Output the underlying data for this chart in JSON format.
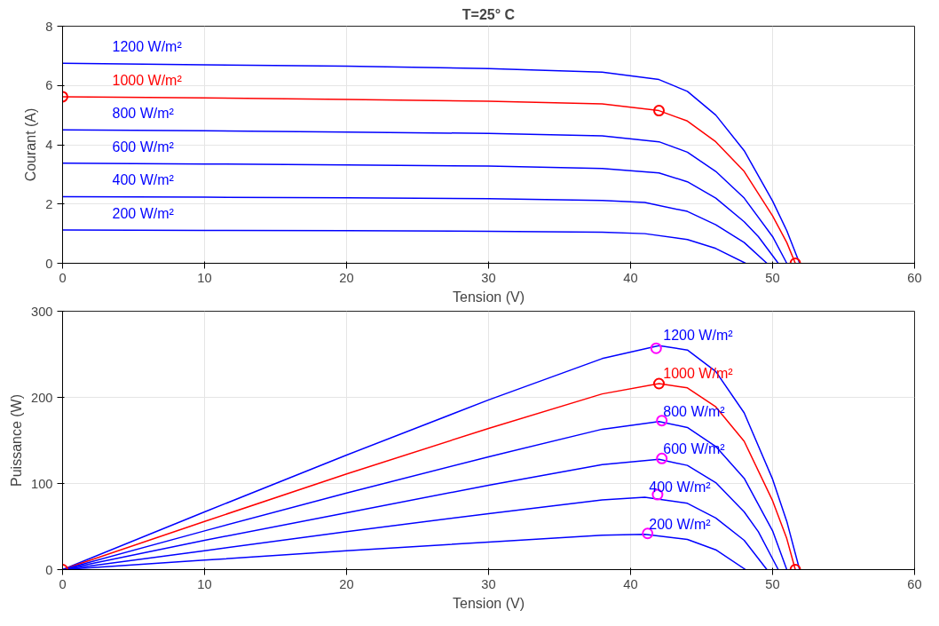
{
  "chart_data": [
    {
      "type": "line",
      "title": "T=25° C",
      "xlabel": "Tension (V)",
      "ylabel": "Courant (A)",
      "xlim": [
        0,
        60
      ],
      "xticks": [
        0,
        10,
        20,
        30,
        40,
        50,
        60
      ],
      "ylim": [
        0,
        8
      ],
      "yticks": [
        0,
        2,
        4,
        6,
        8
      ],
      "grid": true,
      "series": [
        {
          "name": "1200 W/m²",
          "color": "#0000ff",
          "x": [
            0,
            10,
            20,
            30,
            38,
            42,
            44,
            46,
            48,
            50,
            51,
            51.9
          ],
          "values": [
            6.75,
            6.7,
            6.65,
            6.57,
            6.45,
            6.2,
            5.8,
            5.0,
            3.8,
            2.1,
            1.1,
            0
          ]
        },
        {
          "name": "1000 W/m²",
          "color": "#ff0000",
          "x": [
            0,
            10,
            20,
            30,
            38,
            42,
            44,
            46,
            48,
            50,
            51,
            51.6
          ],
          "values": [
            5.62,
            5.58,
            5.53,
            5.47,
            5.38,
            5.15,
            4.8,
            4.1,
            3.1,
            1.6,
            0.7,
            0
          ]
        },
        {
          "name": "800 W/m²",
          "color": "#0000ff",
          "x": [
            0,
            10,
            20,
            30,
            38,
            42,
            44,
            46,
            48,
            50,
            51
          ],
          "values": [
            4.5,
            4.47,
            4.43,
            4.38,
            4.3,
            4.1,
            3.75,
            3.1,
            2.2,
            0.9,
            0
          ]
        },
        {
          "name": "600 W/m²",
          "color": "#0000ff",
          "x": [
            0,
            10,
            20,
            30,
            38,
            42,
            44,
            46,
            48,
            49,
            50.4
          ],
          "values": [
            3.38,
            3.35,
            3.32,
            3.28,
            3.2,
            3.05,
            2.75,
            2.2,
            1.4,
            0.9,
            0
          ]
        },
        {
          "name": "400 W/m²",
          "color": "#0000ff",
          "x": [
            0,
            10,
            20,
            30,
            38,
            41,
            44,
            46,
            48,
            49.6
          ],
          "values": [
            2.25,
            2.23,
            2.21,
            2.18,
            2.12,
            2.05,
            1.75,
            1.3,
            0.7,
            0
          ]
        },
        {
          "name": "200 W/m²",
          "color": "#0000ff",
          "x": [
            0,
            10,
            20,
            30,
            38,
            41,
            44,
            46,
            48.1
          ],
          "values": [
            1.12,
            1.11,
            1.1,
            1.08,
            1.05,
            1.0,
            0.8,
            0.5,
            0
          ]
        },
        {
          "type": "scatter",
          "marker": "circle",
          "color": "#ff0000",
          "x": [
            0,
            42,
            51.6
          ],
          "values": [
            5.62,
            5.15,
            0
          ]
        }
      ]
    },
    {
      "type": "line",
      "xlabel": "Tension (V)",
      "ylabel": "Puissance (W)",
      "xlim": [
        0,
        60
      ],
      "xticks": [
        0,
        10,
        20,
        30,
        40,
        50,
        60
      ],
      "ylim": [
        0,
        300
      ],
      "yticks": [
        0,
        100,
        200,
        300
      ],
      "grid": true,
      "series": [
        {
          "name": "1200 W/m²",
          "color": "#0000ff",
          "x": [
            0,
            10,
            20,
            30,
            38,
            42,
            44,
            46,
            48,
            50,
            51,
            51.9
          ],
          "values": [
            0,
            67,
            133,
            197,
            245,
            260,
            255,
            230,
            182,
            105,
            56,
            0
          ]
        },
        {
          "name": "1000 W/m²",
          "color": "#ff0000",
          "x": [
            0,
            10,
            20,
            30,
            38,
            42,
            44,
            46,
            48,
            50,
            51,
            51.6
          ],
          "values": [
            0,
            56,
            111,
            164,
            204,
            216,
            211,
            189,
            149,
            80,
            36,
            0
          ]
        },
        {
          "name": "800 W/m²",
          "color": "#0000ff",
          "x": [
            0,
            10,
            20,
            30,
            38,
            42,
            44,
            46,
            48,
            50,
            51
          ],
          "values": [
            0,
            45,
            89,
            131,
            163,
            172,
            165,
            143,
            106,
            45,
            0
          ]
        },
        {
          "name": "600 W/m²",
          "color": "#0000ff",
          "x": [
            0,
            10,
            20,
            30,
            38,
            42,
            44,
            46,
            48,
            49,
            50.4
          ],
          "values": [
            0,
            34,
            66,
            98,
            122,
            128,
            121,
            101,
            67,
            44,
            0
          ]
        },
        {
          "name": "400 W/m²",
          "color": "#0000ff",
          "x": [
            0,
            10,
            20,
            30,
            38,
            41,
            44,
            46,
            48,
            49.6
          ],
          "values": [
            0,
            22,
            44,
            65,
            81,
            84,
            77,
            60,
            34,
            0
          ]
        },
        {
          "name": "200 W/m²",
          "color": "#0000ff",
          "x": [
            0,
            10,
            20,
            30,
            38,
            41,
            44,
            46,
            48.1
          ],
          "values": [
            0,
            11,
            22,
            32,
            40,
            41,
            35,
            23,
            0
          ]
        },
        {
          "type": "scatter",
          "marker": "circle",
          "color": "#ff00ff",
          "x": [
            41.8,
            42.2,
            42.2,
            41.9,
            41.2
          ],
          "values": [
            257,
            173,
            129,
            87,
            42
          ]
        },
        {
          "type": "scatter",
          "marker": "circle",
          "color": "#ff0000",
          "x": [
            0,
            42,
            51.6
          ],
          "values": [
            0,
            216,
            0
          ]
        }
      ]
    }
  ]
}
